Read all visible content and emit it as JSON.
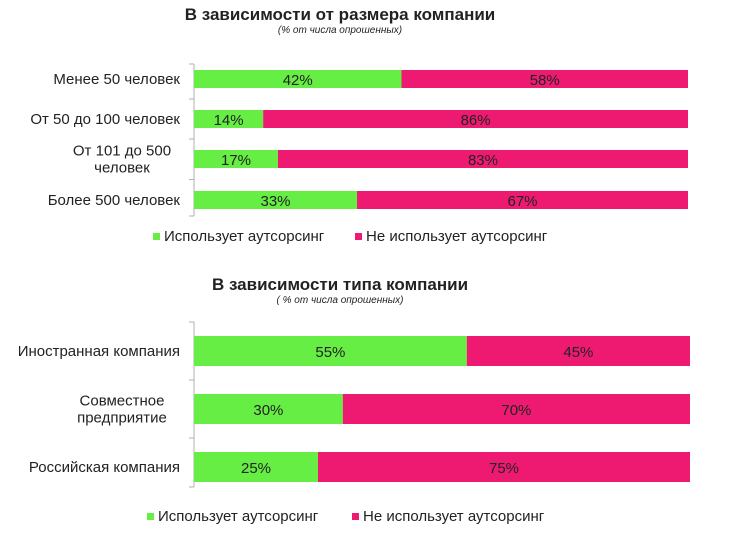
{
  "colors": {
    "uses": "#66ee44",
    "not_uses": "#ee1a72",
    "axis": "#b0b0b0"
  },
  "chart_data": [
    {
      "type": "bar",
      "orientation": "horizontal",
      "stacked": true,
      "title": "В зависимости от размера компании",
      "subtitle": "(% от числа опрошенных)",
      "categories": [
        [
          "Менее 50 человек"
        ],
        [
          "От 50 до 100 человек"
        ],
        [
          "От 101 до 500",
          "человек"
        ],
        [
          "Более 500 человек"
        ]
      ],
      "series": [
        {
          "name": "Использует аутсорсинг",
          "values": [
            42,
            14,
            17,
            33
          ]
        },
        {
          "name": "Не использует аутсорсинг",
          "values": [
            58,
            86,
            83,
            67
          ]
        }
      ],
      "value_labels": [
        [
          "42%",
          "14%",
          "17%",
          "33%"
        ],
        [
          "58%",
          "86%",
          "83%",
          "67%"
        ]
      ],
      "xlim": [
        0,
        100
      ],
      "legend": "bottom-left"
    },
    {
      "type": "bar",
      "orientation": "horizontal",
      "stacked": true,
      "title": "В зависимости типа компании",
      "subtitle": "( % от числа опрошенных)",
      "categories": [
        [
          "Иностранная компания"
        ],
        [
          "Совместное",
          "предприятие"
        ],
        [
          "Российская компания"
        ]
      ],
      "series": [
        {
          "name": "Использует аутсорсинг",
          "values": [
            55,
            30,
            25
          ]
        },
        {
          "name": "Не использует аутсорсинг",
          "values": [
            45,
            70,
            75
          ]
        }
      ],
      "value_labels": [
        [
          "55%",
          "30%",
          "25%"
        ],
        [
          "45%",
          "70%",
          "75%"
        ]
      ],
      "xlim": [
        0,
        100
      ],
      "legend": "bottom-left"
    }
  ]
}
